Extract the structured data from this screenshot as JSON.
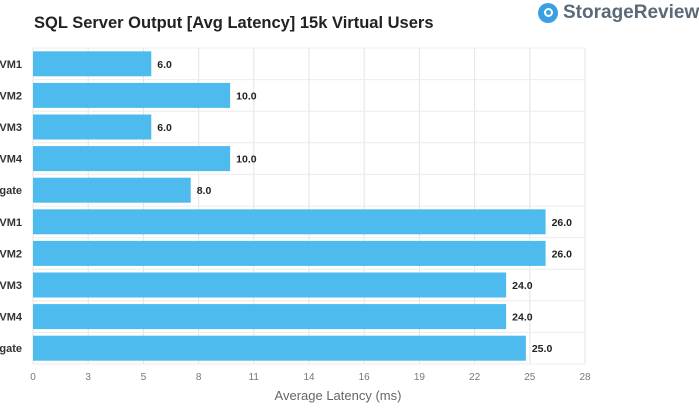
{
  "brand": {
    "name": "StorageReview",
    "icon": "brand-logo-icon"
  },
  "chart_data": {
    "type": "bar",
    "orientation": "horizontal",
    "title": "SQL Server Output [Avg Latency] 15k Virtual Users",
    "xlabel": "Average Latency (ms)",
    "ylabel": "",
    "categories": [
      "VM1",
      "VM2",
      "VM3",
      "VM4",
      "gate",
      "VM1",
      "VM2",
      "VM3",
      "VM4",
      "gate"
    ],
    "values": [
      6.0,
      10.0,
      6.0,
      10.0,
      8.0,
      26.0,
      26.0,
      24.0,
      24.0,
      25.0
    ],
    "value_labels": [
      "6.0",
      "10.0",
      "6.0",
      "10.0",
      "8.0",
      "26.0",
      "26.0",
      "24.0",
      "24.0",
      "25.0"
    ],
    "xlim": [
      0,
      28
    ],
    "xticks": [
      0,
      2.8,
      5.6,
      8.4,
      11.2,
      14,
      16.8,
      19.6,
      22.4,
      25.2,
      28
    ],
    "xtick_labels": [
      "0",
      "3",
      "5",
      "8",
      "11",
      "14",
      "16",
      "19",
      "22",
      "25",
      "28"
    ],
    "bar_color": "#4dbbed",
    "grid": true,
    "legend": "none"
  }
}
